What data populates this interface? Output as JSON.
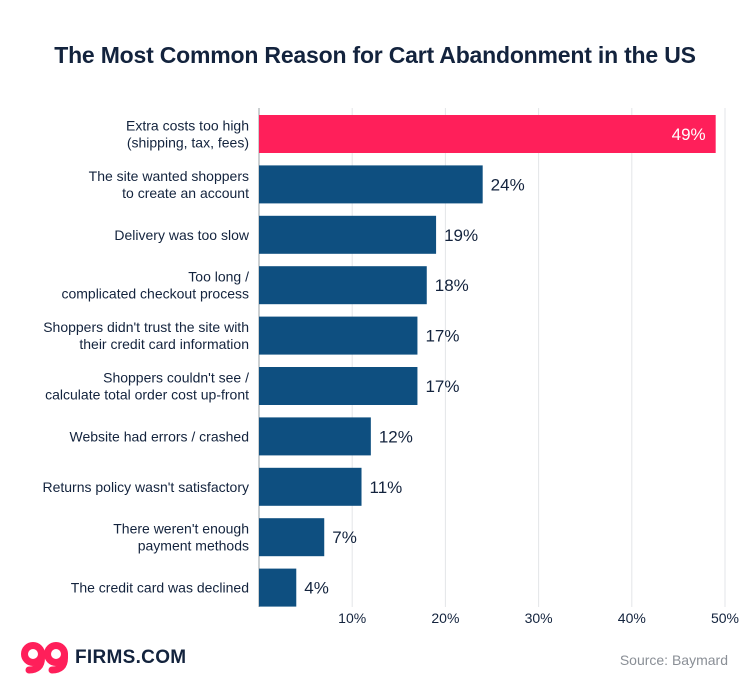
{
  "chart_data": {
    "type": "bar",
    "orientation": "horizontal",
    "title": "The Most Common Reason for Cart Abandonment in the US",
    "categories": [
      [
        "Extra costs too high",
        "(shipping, tax, fees)"
      ],
      [
        "The site wanted shoppers",
        "to create an account"
      ],
      [
        "Delivery was too slow"
      ],
      [
        "Too long /",
        "complicated checkout process"
      ],
      [
        "Shoppers didn't trust the site with",
        "their credit card information"
      ],
      [
        "Shoppers couldn't see /",
        "calculate total order cost up-front"
      ],
      [
        "Website had errors / crashed"
      ],
      [
        "Returns policy wasn't satisfactory"
      ],
      [
        "There weren't enough",
        "payment methods"
      ],
      [
        "The credit card was declined"
      ]
    ],
    "values": [
      49,
      24,
      19,
      18,
      17,
      17,
      12,
      11,
      7,
      4
    ],
    "value_labels": [
      "49%",
      "24%",
      "19%",
      "18%",
      "17%",
      "17%",
      "12%",
      "11%",
      "7%",
      "4%"
    ],
    "xlim": [
      0,
      50
    ],
    "xticks": [
      10,
      20,
      30,
      40,
      50
    ],
    "xtick_labels": [
      "10%",
      "20%",
      "30%",
      "40%",
      "50%"
    ],
    "highlight_index": 0,
    "colors": {
      "highlight": "#ff1f5a",
      "bar": "#0e4f80",
      "label": "#13233d",
      "highlight_label": "#ffffff",
      "grid": "#e3e5e8",
      "axis": "#9aa0a6"
    }
  },
  "footer": {
    "logo_mark": "99",
    "logo_text": "FIRMS.COM",
    "source": "Source: Baymard"
  }
}
